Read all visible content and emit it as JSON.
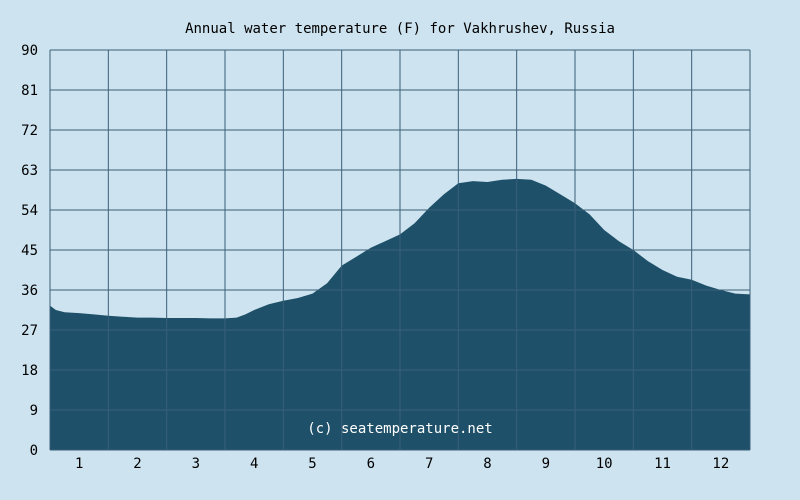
{
  "chart_data": {
    "type": "area",
    "title": "Annual water temperature (F) for Vakhrushev, Russia",
    "xlabel": "",
    "ylabel": "",
    "watermark": "(c) seatemperature.net",
    "ylim": [
      0,
      90
    ],
    "xlim": [
      0.5,
      12.5
    ],
    "y_ticks": [
      "0",
      "9",
      "18",
      "27",
      "36",
      "45",
      "54",
      "63",
      "72",
      "81",
      "90"
    ],
    "x_ticks": [
      "1",
      "2",
      "3",
      "4",
      "5",
      "6",
      "7",
      "8",
      "9",
      "10",
      "11",
      "12"
    ],
    "grid": true,
    "legend": "none",
    "colors": {
      "background": "#cde3ef",
      "area_fill": "#1e5069",
      "grid_line": "#3a5f7a",
      "watermark": "#ffffff"
    },
    "series": [
      {
        "x": [
          0.5,
          0.6,
          0.75,
          1.0,
          1.25,
          1.5,
          1.75,
          2.0,
          2.25,
          2.5,
          2.75,
          3.0,
          3.25,
          3.5,
          3.7,
          3.85,
          4.0,
          4.25,
          4.5,
          4.75,
          5.0,
          5.25,
          5.5,
          5.75,
          6.0,
          6.25,
          6.5,
          6.75,
          7.0,
          7.25,
          7.5,
          7.75,
          8.0,
          8.25,
          8.5,
          8.75,
          9.0,
          9.25,
          9.5,
          9.75,
          10.0,
          10.25,
          10.5,
          10.75,
          11.0,
          11.25,
          11.5,
          11.75,
          12.0,
          12.25,
          12.5
        ],
        "y": [
          32.5,
          31.5,
          31.0,
          30.8,
          30.5,
          30.2,
          30.0,
          29.8,
          29.8,
          29.7,
          29.7,
          29.7,
          29.6,
          29.6,
          29.8,
          30.5,
          31.5,
          32.8,
          33.6,
          34.2,
          35.2,
          37.5,
          41.5,
          43.5,
          45.5,
          47.0,
          48.5,
          51.0,
          54.5,
          57.5,
          60.0,
          60.5,
          60.3,
          60.8,
          61.0,
          60.8,
          59.5,
          57.5,
          55.5,
          53.0,
          49.5,
          47.0,
          45.0,
          42.5,
          40.5,
          39.0,
          38.3,
          37.0,
          36.0,
          35.2,
          35.0
        ]
      }
    ]
  }
}
